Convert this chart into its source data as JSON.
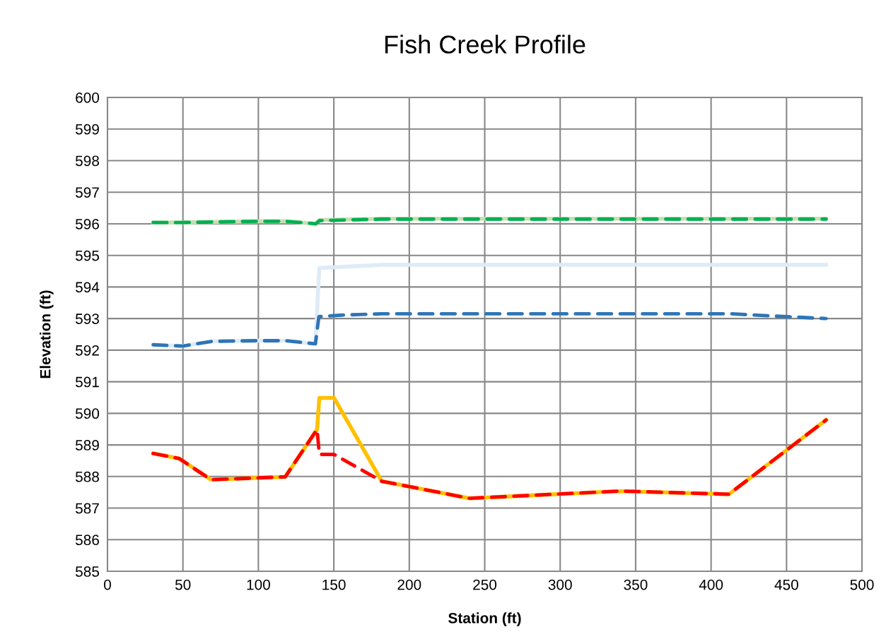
{
  "chart_data": {
    "type": "line",
    "title": "Fish Creek Profile",
    "xlabel": "Station (ft)",
    "ylabel": "Elevation (ft)",
    "xlim": [
      0,
      500
    ],
    "xticks": [
      0,
      50,
      100,
      150,
      200,
      250,
      300,
      350,
      400,
      450,
      500
    ],
    "ylim": [
      585,
      600
    ],
    "yticks": [
      585,
      586,
      587,
      588,
      589,
      590,
      591,
      592,
      593,
      594,
      595,
      596,
      597,
      598,
      599,
      600
    ],
    "grid": true,
    "marker": "none",
    "series": [
      {
        "color": "#ffc000",
        "line_style": "solid",
        "x": [
          30.3,
          47.5,
          68.6,
          117.8,
          138.9,
          140.4,
          150.1,
          181.8,
          240.0,
          339.6,
          411.8,
          476.2
        ],
        "values": [
          588.73,
          588.57,
          587.9,
          587.99,
          589.49,
          590.49,
          590.49,
          587.85,
          587.31,
          587.54,
          587.44,
          589.79
        ]
      },
      {
        "color": "#ff0000",
        "line_style": "dashed",
        "x": [
          30.3,
          47.5,
          68.6,
          117.8,
          138.9,
          140.4,
          150.1,
          181.8,
          240.0,
          339.6,
          411.8,
          476.2
        ],
        "values": [
          588.73,
          588.57,
          587.9,
          587.99,
          589.49,
          588.7,
          588.7,
          587.85,
          587.31,
          587.54,
          587.44,
          589.79
        ]
      },
      {
        "color": "#c5e0b4",
        "line_style": "solid",
        "x": [
          30.3,
          47.5,
          99.8,
          118.0,
          138.1,
          140.4,
          181.8,
          476.2
        ],
        "values": [
          596.04,
          596.04,
          596.08,
          596.08,
          596.0,
          596.12,
          596.16,
          596.16
        ]
      },
      {
        "color": "#00b050",
        "line_style": "dashed",
        "x": [
          30.3,
          47.5,
          99.8,
          118.0,
          138.1,
          140.4,
          181.8,
          476.2
        ],
        "values": [
          596.04,
          596.04,
          596.08,
          596.08,
          596.0,
          596.1,
          596.15,
          596.15
        ]
      },
      {
        "color": "#deebf7",
        "line_style": "solid",
        "x": [
          30.3,
          49.8,
          69.4,
          99.8,
          118.0,
          137.8,
          140.4,
          181.8,
          476.2
        ],
        "values": [
          592.17,
          592.13,
          592.28,
          592.3,
          592.3,
          592.2,
          594.6,
          594.7,
          594.7
        ]
      },
      {
        "color": "#2e75b6",
        "line_style": "dashed",
        "x": [
          30.3,
          49.8,
          69.4,
          99.8,
          118.0,
          137.8,
          140.1,
          155.3,
          181.8,
          413.8,
          433.0,
          476.2
        ],
        "values": [
          592.17,
          592.13,
          592.28,
          592.3,
          592.3,
          592.2,
          593.06,
          593.11,
          593.15,
          593.15,
          593.1,
          593.0
        ]
      }
    ]
  }
}
